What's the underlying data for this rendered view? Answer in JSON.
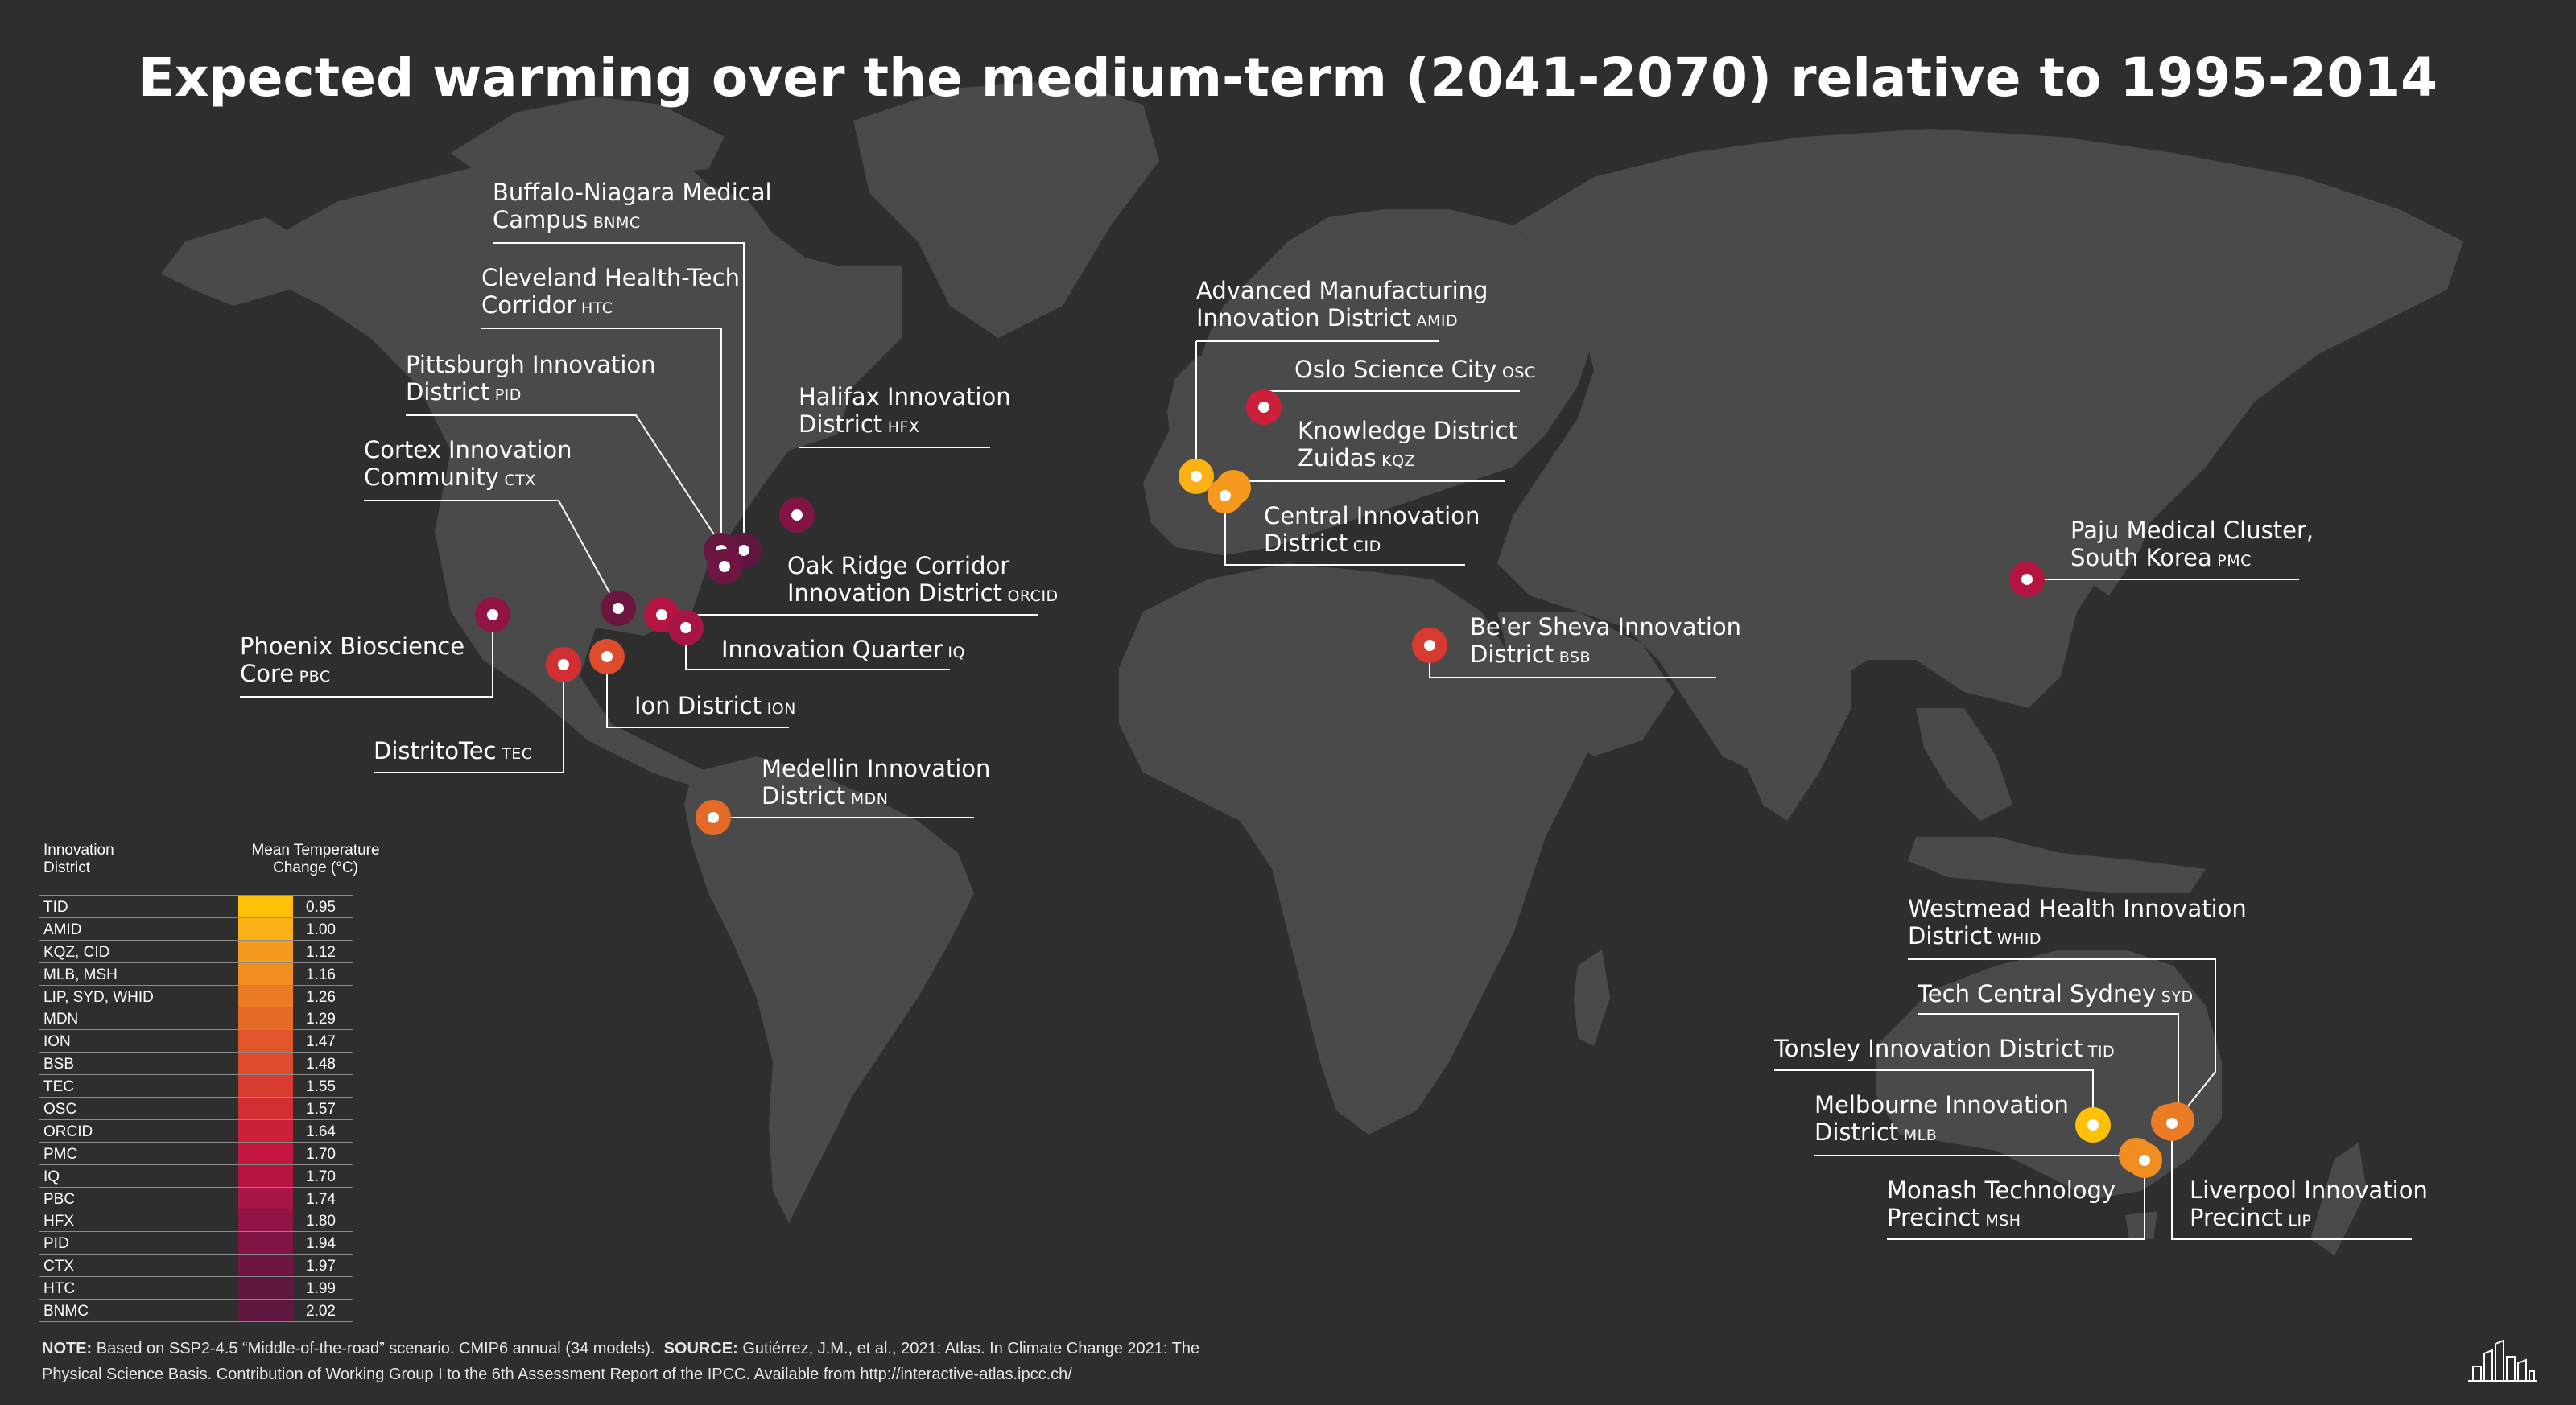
{
  "title": "Expected warming over the medium-term (2041-2070) relative to 1995-2014",
  "colors": {
    "background": "#2e2e2e",
    "land": "#4a4a4a",
    "leader_line": "#ffffff",
    "scale": [
      "#ffc107",
      "#fbb015",
      "#f59a1f",
      "#f18d21",
      "#ec7b25",
      "#e56a28",
      "#e0552b",
      "#dd4c2d",
      "#d73a2f",
      "#d22f33",
      "#cc1f3a",
      "#c4173f",
      "#b81442",
      "#a61545",
      "#921446",
      "#801444",
      "#6f1541",
      "#611640"
    ]
  },
  "districts": [
    {
      "id": "BNMC",
      "line1": "Buffalo-Niagara Medical",
      "line2": "Campus",
      "abbr": "BNMC",
      "value": 2.02,
      "color": "#611640"
    },
    {
      "id": "HTC",
      "line1": "Cleveland Health-Tech",
      "line2": "Corridor",
      "abbr": "HTC",
      "value": 1.99,
      "color": "#661640"
    },
    {
      "id": "PID",
      "line1": "Pittsburgh Innovation",
      "line2": "District",
      "abbr": "PID",
      "value": 1.94,
      "color": "#6f1541"
    },
    {
      "id": "CTX",
      "line1": "Cortex Innovation",
      "line2": "Community",
      "abbr": "CTX",
      "value": 1.97,
      "color": "#6a1641"
    },
    {
      "id": "HFX",
      "line1": "Halifax Innovation",
      "line2": "District",
      "abbr": "HFX",
      "value": 1.8,
      "color": "#801444"
    },
    {
      "id": "ORCID",
      "line1": "Oak Ridge Corridor",
      "line2": "Innovation District",
      "abbr": "ORCID",
      "value": 1.64,
      "color": "#b81442"
    },
    {
      "id": "IQ",
      "line1": "Innovation Quarter",
      "line2": "",
      "abbr": "IQ",
      "value": 1.7,
      "color": "#a61545"
    },
    {
      "id": "PBC",
      "line1": "Phoenix Bioscience",
      "line2": "Core",
      "abbr": "PBC",
      "value": 1.74,
      "color": "#921446"
    },
    {
      "id": "ION",
      "line1": "Ion District",
      "line2": "",
      "abbr": "ION",
      "value": 1.47,
      "color": "#dd4c2d"
    },
    {
      "id": "TEC",
      "line1": "DistritoTec",
      "line2": "",
      "abbr": "TEC",
      "value": 1.55,
      "color": "#d22f33"
    },
    {
      "id": "MDN",
      "line1": "Medellin Innovation",
      "line2": "District",
      "abbr": "MDN",
      "value": 1.29,
      "color": "#e56a28"
    },
    {
      "id": "AMID",
      "line1": "Advanced Manufacturing",
      "line2": "Innovation District",
      "abbr": "AMID",
      "value": 1.0,
      "color": "#fbb015"
    },
    {
      "id": "OSC",
      "line1": "Oslo Science City",
      "line2": "",
      "abbr": "OSC",
      "value": 1.57,
      "color": "#cc1f3a"
    },
    {
      "id": "KQZ",
      "line1": "Knowledge District",
      "line2": "Zuidas",
      "abbr": "KQZ",
      "value": 1.12,
      "color": "#f59a1f"
    },
    {
      "id": "CID",
      "line1": "Central Innovation",
      "line2": "District",
      "abbr": "CID",
      "value": 1.12,
      "color": "#f59a1f"
    },
    {
      "id": "BSB",
      "line1": "Be'er Sheva Innovation",
      "line2": "District",
      "abbr": "BSB",
      "value": 1.48,
      "color": "#d73a2f"
    },
    {
      "id": "PMC",
      "line1": "Paju Medical Cluster,",
      "line2": "South Korea",
      "abbr": "PMC",
      "value": 1.7,
      "color": "#b31540"
    },
    {
      "id": "WHID",
      "line1": "Westmead Health Innovation",
      "line2": "District",
      "abbr": "WHID",
      "value": 1.26,
      "color": "#ec7b25"
    },
    {
      "id": "SYD",
      "line1": "Tech Central Sydney",
      "line2": "",
      "abbr": "SYD",
      "value": 1.26,
      "color": "#ec7b25"
    },
    {
      "id": "TID",
      "line1": "Tonsley Innovation District",
      "line2": "",
      "abbr": "TID",
      "value": 0.95,
      "color": "#ffc107"
    },
    {
      "id": "MLB",
      "line1": "Melbourne Innovation",
      "line2": "District",
      "abbr": "MLB",
      "value": 1.16,
      "color": "#f18d21"
    },
    {
      "id": "MSH",
      "line1": "Monash Technology",
      "line2": "Precinct",
      "abbr": "MSH",
      "value": 1.16,
      "color": "#f18d21"
    },
    {
      "id": "LIP",
      "line1": "Liverpool Innovation",
      "line2": "Precinct",
      "abbr": "LIP",
      "value": 1.26,
      "color": "#ec7b25"
    }
  ],
  "legend": {
    "col1_header_line1": "Innovation",
    "col1_header_line2": "District",
    "col2_header_line1": "Mean Temperature",
    "col2_header_line2": "Change (°C)",
    "rows": [
      {
        "label": "TID",
        "value": "0.95"
      },
      {
        "label": "AMID",
        "value": "1.00"
      },
      {
        "label": "KQZ, CID",
        "value": "1.12"
      },
      {
        "label": "MLB, MSH",
        "value": "1.16"
      },
      {
        "label": "LIP, SYD, WHID",
        "value": "1.26"
      },
      {
        "label": "MDN",
        "value": "1.29"
      },
      {
        "label": "ION",
        "value": "1.47"
      },
      {
        "label": "BSB",
        "value": "1.48"
      },
      {
        "label": "TEC",
        "value": "1.55"
      },
      {
        "label": "OSC",
        "value": "1.57"
      },
      {
        "label": "ORCID",
        "value": "1.64"
      },
      {
        "label": "PMC",
        "value": "1.70"
      },
      {
        "label": "IQ",
        "value": "1.70"
      },
      {
        "label": "PBC",
        "value": "1.74"
      },
      {
        "label": "HFX",
        "value": "1.80"
      },
      {
        "label": "PID",
        "value": "1.94"
      },
      {
        "label": "CTX",
        "value": "1.97"
      },
      {
        "label": "HTC",
        "value": "1.99"
      },
      {
        "label": "BNMC",
        "value": "2.02"
      }
    ]
  },
  "note": {
    "note_label": "NOTE:",
    "note_text": "Based on SSP2-4.5 “Middle-of-the-road” scenario. CMIP6 annual (34 models).",
    "source_label": "SOURCE:",
    "source_text_line1": "Gutiérrez, J.M., et al., 2021: Atlas. In Climate Change 2021: The",
    "source_text_line2": "Physical Science Basis. Contribution of Working Group I to the 6th Assessment Report of the IPCC. Available from http://interactive-atlas.ipcc.ch/"
  },
  "logo_icon": "city-skyline-icon"
}
